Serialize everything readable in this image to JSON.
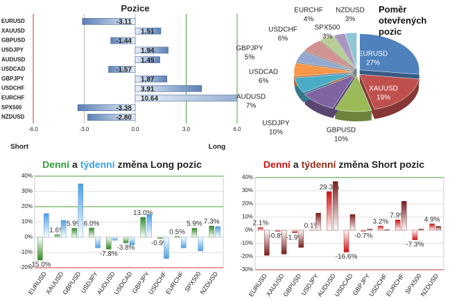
{
  "chart_data": [
    {
      "type": "hbar",
      "title": "Pozice",
      "categories": [
        "EURUSD",
        "XAUUSD",
        "GBPUSD",
        "USDJPY",
        "AUDUSD",
        "USDCAD",
        "GBPJPY",
        "USDCHF",
        "EURCHF",
        "SPX500",
        "NZDUSD"
      ],
      "values": [
        -3.11,
        1.51,
        -1.44,
        1.94,
        1.45,
        -1.57,
        1.87,
        3.91,
        10.64,
        -3.38,
        -2.8
      ],
      "value_labels": [
        "-3.11",
        "1.51",
        "-1.44",
        "1.94",
        "1.45",
        "-1.57",
        "1.87",
        "3.91",
        "10.64",
        "-3.38",
        "-2.80"
      ],
      "color": "#5b7fb5",
      "xlim": [
        -6,
        6
      ],
      "xticks": [
        {
          "value": -6,
          "label": "-6.0"
        },
        {
          "value": -3,
          "label": "-3.0"
        },
        {
          "value": 0,
          "label": "0.0"
        },
        {
          "value": 3,
          "label": "3.0"
        },
        {
          "value": 6,
          "label": "6.0"
        }
      ],
      "gridline_colors": [
        "#c0392b",
        "#bbbbbb",
        "#bbbbbb",
        "#4a9e3a",
        "#4a9e3a"
      ],
      "xlabel_neg": "Short",
      "xlabel_pos": "Long"
    },
    {
      "type": "pie",
      "title": "Poměr otevřených pozic",
      "categories": [
        "EURUSD",
        "XAUUSD",
        "GBPUSD",
        "USDJPY",
        "AUDUSD",
        "USDCAD",
        "GBPJPY",
        "USDCHF",
        "EURCHF",
        "SPX500",
        "NZDUSD"
      ],
      "values": [
        27,
        19,
        10,
        10,
        7,
        6,
        5,
        6,
        4,
        3,
        3
      ],
      "value_labels": [
        "27%",
        "19%",
        "10%",
        "10%",
        "7%",
        "6%",
        "5%",
        "6%",
        "4%",
        "3%",
        "3%"
      ],
      "colors": [
        "#4f81bd",
        "#c0504d",
        "#9bbb59",
        "#8064a2",
        "#4bacc6",
        "#f79646",
        "#93a9cf",
        "#d19392",
        "#b9cd96",
        "#a997c0",
        "#8ec6d8"
      ]
    },
    {
      "type": "bar",
      "title_parts": [
        {
          "text": "Denní",
          "color": "#2e9e3a"
        },
        {
          "text": "a",
          "color": "#222222"
        },
        {
          "text": "týdenní",
          "color": "#3aa0e0"
        },
        {
          "text": "změna Long pozic",
          "color": "#222222"
        }
      ],
      "categories": [
        "EURUSD",
        "XAUUSD",
        "GBPUSD",
        "USDJPY",
        "AUDUSD",
        "USDCAD",
        "GBPJPY",
        "USDCHF",
        "EURCHF",
        "SPX500",
        "NZDUSD"
      ],
      "series": [
        {
          "color": "#2f8a26",
          "values": [
            -15.0,
            1.6,
            5.9,
            6.0,
            -7.8,
            -3.8,
            13.0,
            -0.9,
            0.5,
            5.9,
            7.3
          ],
          "value_labels": [
            "-15.0%",
            "1.6%",
            "5.9%",
            "6.0%",
            "-7.8%",
            "-3.8%",
            "13.0%",
            "-0.9%",
            "0.5%",
            "5.9%",
            "7.3%"
          ]
        },
        {
          "color": "#4a9fe8",
          "values": [
            15.5,
            11,
            35,
            -7,
            -2,
            -5,
            15,
            -14,
            -7,
            -9,
            7
          ]
        }
      ],
      "ylim": [
        -20,
        40
      ],
      "yticks": [
        {
          "value": 40,
          "label": "40%"
        },
        {
          "value": 30,
          "label": "30%"
        },
        {
          "value": 20,
          "label": "20%"
        },
        {
          "value": 10,
          "label": "10%"
        },
        {
          "value": 0,
          "label": "0%"
        },
        {
          "value": -10,
          "label": "-10%"
        },
        {
          "value": -20,
          "label": "-20%"
        }
      ],
      "gridline_colors": [
        "#4a9e3a",
        "#dddddd",
        "#4a9e3a",
        "#dddddd",
        "#dddddd",
        "#dddddd",
        "#c0392b"
      ]
    },
    {
      "type": "bar",
      "title_parts": [
        {
          "text": "Denní",
          "color": "#d01010"
        },
        {
          "text": "a",
          "color": "#222222"
        },
        {
          "text": "týdenní",
          "color": "#8b2a1a"
        },
        {
          "text": "změna Short pozic",
          "color": "#222222"
        }
      ],
      "categories": [
        "EURUSD",
        "XAUUSD",
        "GBPUSD",
        "USDJPY",
        "AUDUSD",
        "USDCAD",
        "GBPJPY",
        "USDCHF",
        "EURCHF",
        "SPX500",
        "NZDUSD"
      ],
      "series": [
        {
          "color": "#d01010",
          "values": [
            2.1,
            -0.8,
            -1.9,
            0.1,
            29.3,
            -16.6,
            -0.7,
            3.2,
            7.9,
            -7.3,
            4.9
          ],
          "value_labels": [
            "2.1%",
            "-0.8%",
            "-1.9%",
            "0.1%",
            "29.3%",
            "-16.6%",
            "-0.7%",
            "3.2%",
            "7.9%",
            "-7.3%",
            "4.9%"
          ]
        },
        {
          "color": "#7a1a1a",
          "values": [
            -19,
            -18,
            -13,
            13,
            37,
            12,
            1,
            0.5,
            22,
            1,
            3
          ]
        }
      ],
      "ylim": [
        -30,
        40
      ],
      "yticks": [
        {
          "value": 40,
          "label": "40%"
        },
        {
          "value": 30,
          "label": "30%"
        },
        {
          "value": 20,
          "label": "20%"
        },
        {
          "value": 10,
          "label": "10%"
        },
        {
          "value": 0,
          "label": "0%"
        },
        {
          "value": -10,
          "label": "-10%"
        },
        {
          "value": -20,
          "label": "-20%"
        },
        {
          "value": -30,
          "label": "-30%"
        }
      ],
      "gridline_colors": [
        "#4a9e3a",
        "#dddddd",
        "#dddddd",
        "#dddddd",
        "#dddddd",
        "#dddddd",
        "#dddddd",
        "#c0392b"
      ]
    }
  ]
}
